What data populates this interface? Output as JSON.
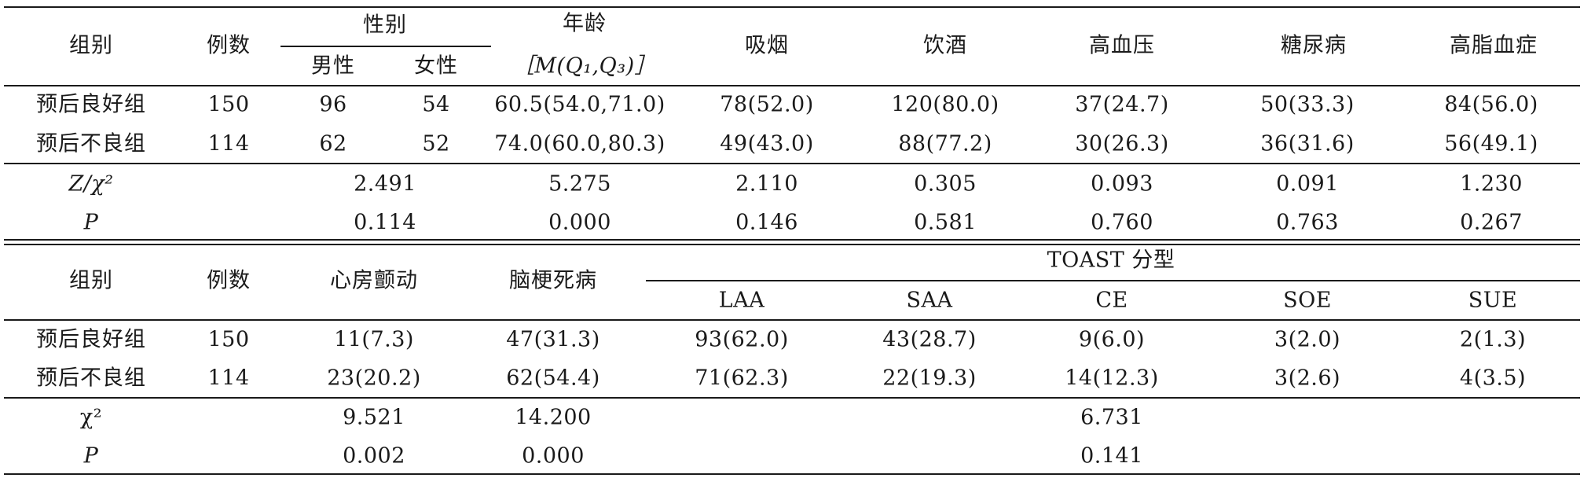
{
  "top": {
    "headers": {
      "group": "组别",
      "count": "例数",
      "sex": "性别",
      "male": "男性",
      "female": "女性",
      "age_line1": "年龄",
      "age_line2": "［M(Q₁,Q₃)］",
      "smoking": "吸烟",
      "drinking": "饮酒",
      "hypertension": "高血压",
      "diabetes": "糖尿病",
      "hyperlipidemia": "高脂血症"
    },
    "rows": [
      [
        "预后良好组",
        "150",
        "96",
        "54",
        "60.5(54.0,71.0)",
        "78(52.0)",
        "120(80.0)",
        "37(24.7)",
        "50(33.3)",
        "84(56.0)"
      ],
      [
        "预后不良组",
        "114",
        "62",
        "52",
        "74.0(60.0,80.3)",
        "49(43.0)",
        "88(77.2)",
        "30(26.3)",
        "36(31.6)",
        "56(49.1)"
      ]
    ],
    "stats": [
      [
        "Z/χ²",
        "2.491",
        "5.275",
        "2.110",
        "0.305",
        "0.093",
        "0.091",
        "1.230"
      ],
      [
        "P",
        "0.114",
        "0.000",
        "0.146",
        "0.581",
        "0.760",
        "0.763",
        "0.267"
      ]
    ]
  },
  "bottom": {
    "headers": {
      "group": "组别",
      "count": "例数",
      "af": "心房颤动",
      "cerebral_infarction": "脑梗死病",
      "toast": "TOAST 分型",
      "laa": "LAA",
      "saa": "SAA",
      "ce": "CE",
      "soe": "SOE",
      "sue": "SUE"
    },
    "rows": [
      [
        "预后良好组",
        "150",
        "11(7.3)",
        "47(31.3)",
        "93(62.0)",
        "43(28.7)",
        "9(6.0)",
        "3(2.0)",
        "2(1.3)"
      ],
      [
        "预后不良组",
        "114",
        "23(20.2)",
        "62(54.4)",
        "71(62.3)",
        "22(19.3)",
        "14(12.3)",
        "3(2.6)",
        "4(3.5)"
      ]
    ],
    "stats": [
      [
        "χ²",
        "9.521",
        "14.200",
        "6.731"
      ],
      [
        "P",
        "0.002",
        "0.000",
        "0.141"
      ]
    ]
  }
}
